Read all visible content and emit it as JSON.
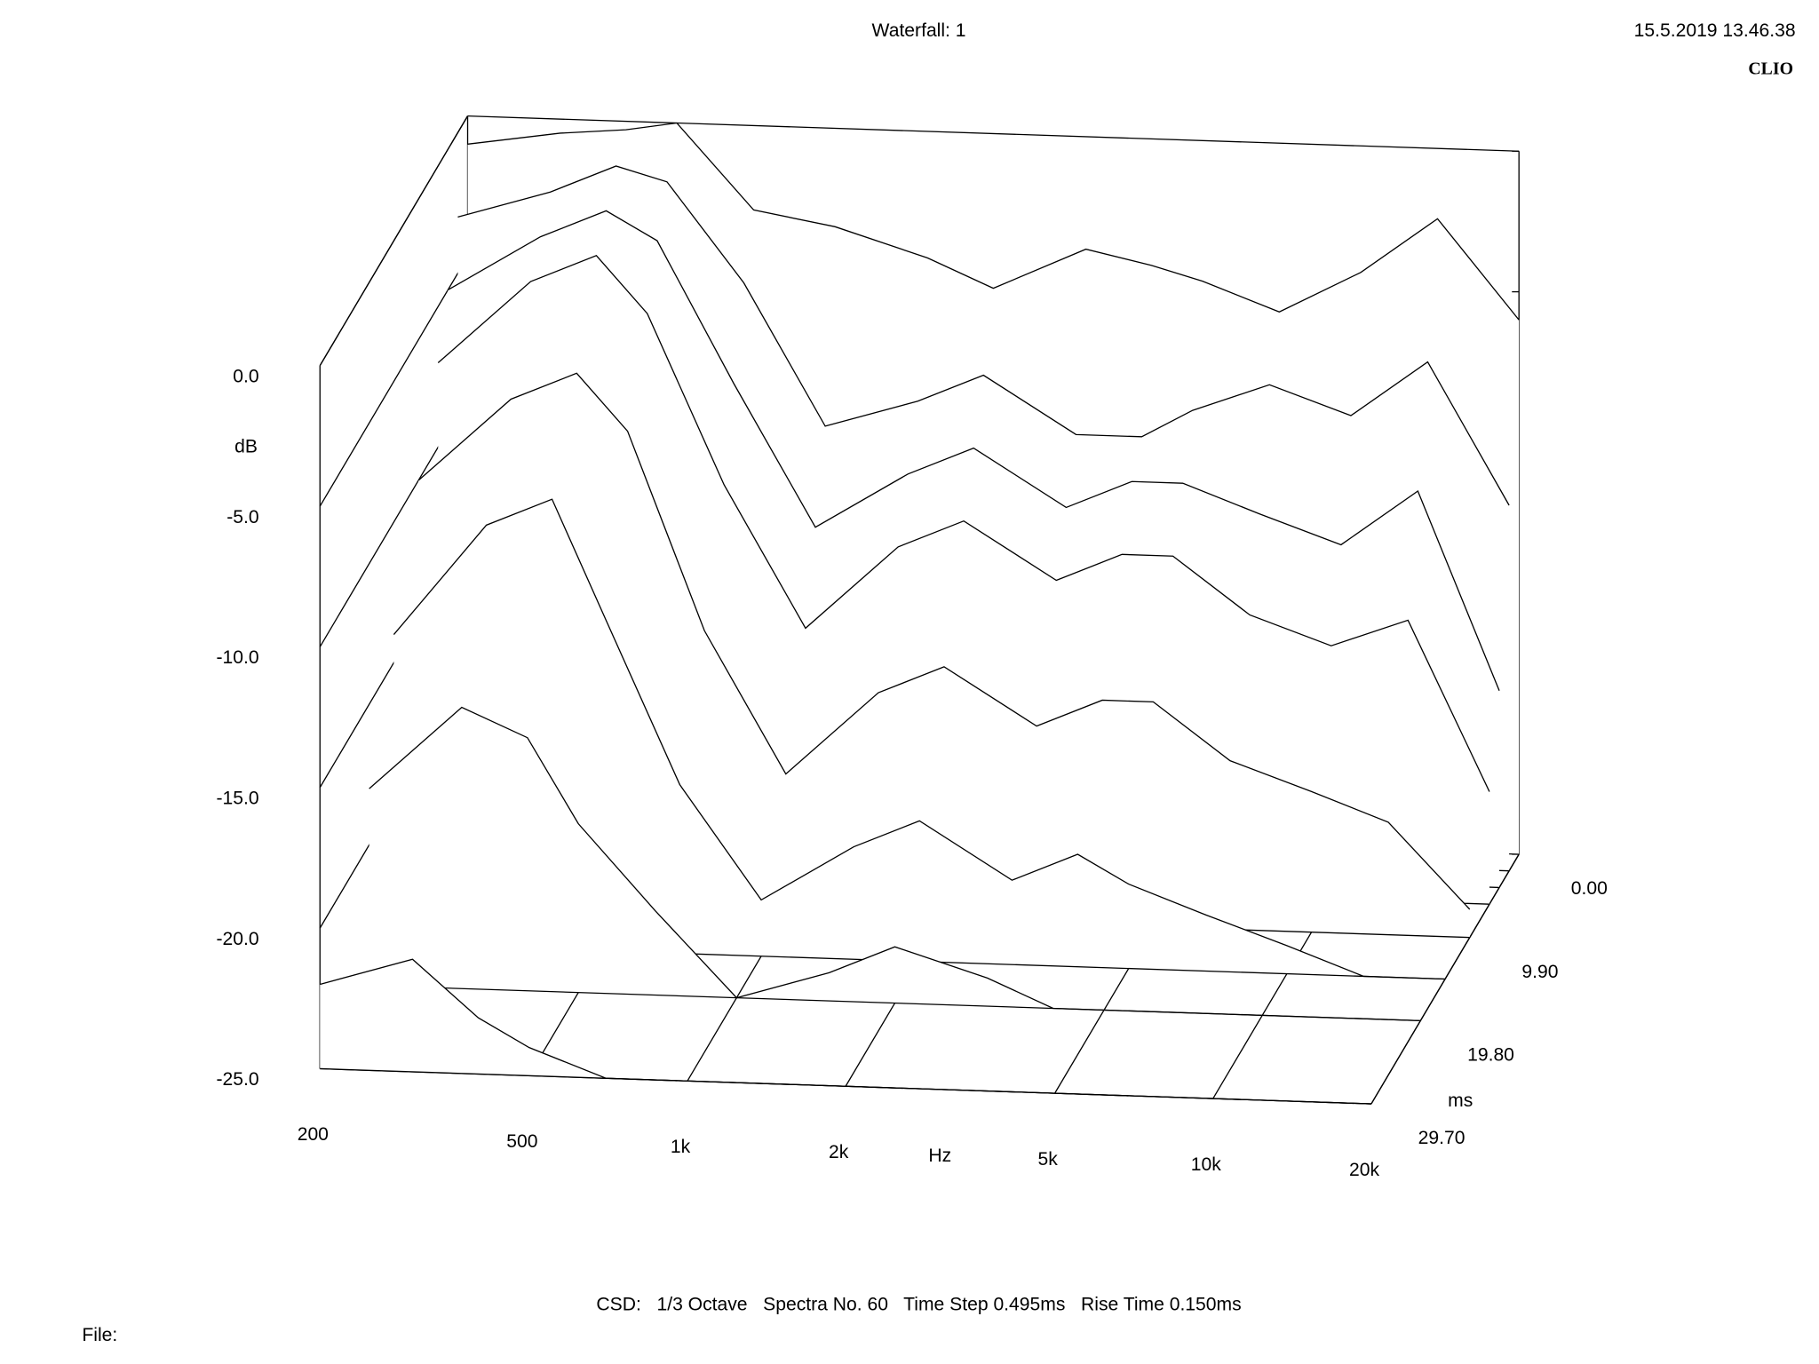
{
  "chart_data": {
    "type": "waterfall",
    "title": "Waterfall: 1",
    "timestamp": "15.5.2019 13.46.38",
    "brand": "CLIO",
    "x_label": "Hz",
    "y_label": "dB",
    "z_label": "ms",
    "footer": "CSD:   1/3 Octave   Spectra No. 60   Time Step 0.495ms   Rise Time 0.150ms",
    "file_label": "File:",
    "log_x": true,
    "xlim": [
      200,
      20000
    ],
    "xticks": [
      200,
      500,
      {
        "value": 1000,
        "label": "1k"
      },
      {
        "value": 2000,
        "label": "2k"
      },
      {
        "value": 5000,
        "label": "5k"
      },
      {
        "value": 10000,
        "label": "10k"
      },
      {
        "value": 20000,
        "label": "20k"
      }
    ],
    "ylim": [
      -25,
      0
    ],
    "yticks": [
      {
        "value": 0,
        "label": "0.0"
      },
      {
        "value": -5,
        "label": "-5.0"
      },
      {
        "value": -10,
        "label": "-10.0"
      },
      {
        "value": -15,
        "label": "-15.0"
      },
      {
        "value": -20,
        "label": "-20.0"
      },
      {
        "value": -25,
        "label": "-25.0"
      }
    ],
    "zlim": [
      0,
      29.7
    ],
    "zticks": [
      {
        "value": 0,
        "label": "0.00"
      },
      {
        "value": 9.9,
        "label": "9.90"
      },
      {
        "value": 19.8,
        "label": "19.80"
      },
      {
        "value": 29.7,
        "label": "29.70"
      }
    ],
    "color": "#000000",
    "frequencies": [
      200,
      300,
      400,
      500,
      700,
      1000,
      1500,
      2000,
      3000,
      4000,
      5000,
      7000,
      10000,
      14000,
      20000
    ],
    "spectra": [
      {
        "time": 0,
        "values": [
          -1,
          -0.5,
          -0.3,
          0,
          -3,
          -3.5,
          -4.5,
          -5.5,
          -4,
          -4.5,
          -5,
          -6,
          -4.5,
          -2.5,
          -6
        ]
      },
      {
        "time": 1.98,
        "values": [
          -3,
          -2,
          -1,
          -1.5,
          -5,
          -10,
          -9,
          -8,
          -10,
          -10,
          -9,
          -8,
          -9,
          -7,
          -12
        ]
      },
      {
        "time": 3.96,
        "values": [
          -5,
          -3,
          -2,
          -3,
          -8,
          -13,
          -11,
          -10,
          -12,
          -11,
          -11,
          -12,
          -13,
          -11,
          -18
        ]
      },
      {
        "time": 5.94,
        "values": [
          -7,
          -4,
          -3,
          -5,
          -11,
          -16,
          -13,
          -12,
          -14,
          -13,
          -13,
          -15,
          -16,
          -15,
          -21
        ]
      },
      {
        "time": 9.9,
        "values": [
          -10,
          -7,
          -6,
          -8,
          -15,
          -20,
          -17,
          -16,
          -18,
          -17,
          -17,
          -19,
          -20,
          -21,
          -24
        ]
      },
      {
        "time": 14.85,
        "values": [
          -14,
          -10,
          -9,
          -13,
          -19,
          -23,
          -21,
          -20,
          -22,
          -21,
          -22,
          -23,
          -24,
          -25,
          -25
        ]
      },
      {
        "time": 19.8,
        "values": [
          -18,
          -15,
          -16,
          -19,
          -22,
          -25,
          -24,
          -23,
          -24,
          -25,
          -25,
          -25,
          -25,
          -25,
          -25
        ]
      },
      {
        "time": 29.7,
        "values": [
          -22,
          -21,
          -23,
          -24,
          -25,
          -25,
          -25,
          -25,
          -25,
          -25,
          -25,
          -25,
          -25,
          -25,
          -25
        ]
      }
    ]
  }
}
